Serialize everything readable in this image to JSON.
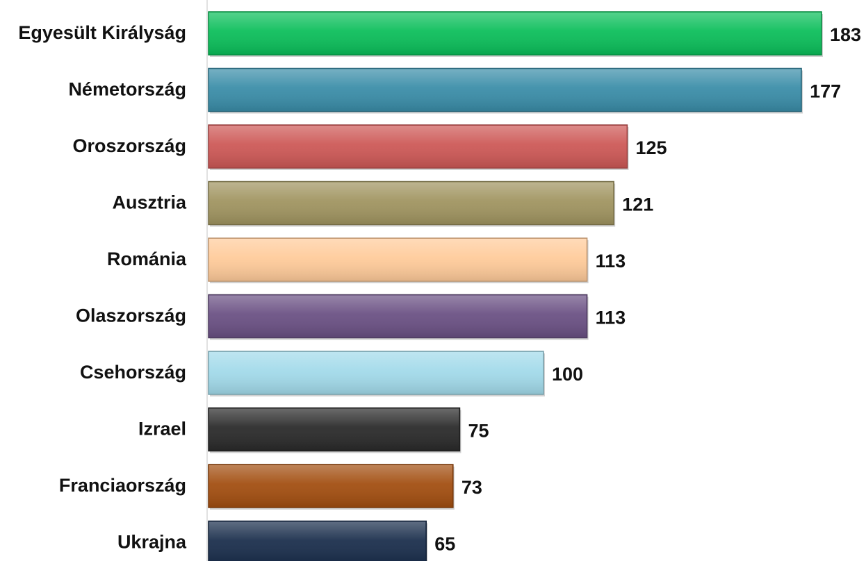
{
  "chart_data": {
    "type": "bar",
    "orientation": "horizontal",
    "categories": [
      "Egyesült Királyság",
      "Németország",
      "Oroszország",
      "Ausztria",
      "Románia",
      "Olaszország",
      "Csehország",
      "Izrael",
      "Franciaország",
      "Ukrajna"
    ],
    "values": [
      183,
      177,
      125,
      121,
      113,
      113,
      100,
      75,
      73,
      65
    ],
    "value_labels": [
      "183",
      "177",
      "125",
      "121",
      "113",
      "113",
      "100",
      "75",
      "73",
      "65"
    ],
    "colors": [
      "#0BBE5A",
      "#3A8DA8",
      "#CD5856",
      "#A09460",
      "#FFCB9A",
      "#6A5083",
      "#A2DAEA",
      "#2A2A2A",
      "#A24E10",
      "#1A2E4C"
    ],
    "xlim": [
      0,
      183
    ],
    "grid": false,
    "legend": "none"
  }
}
